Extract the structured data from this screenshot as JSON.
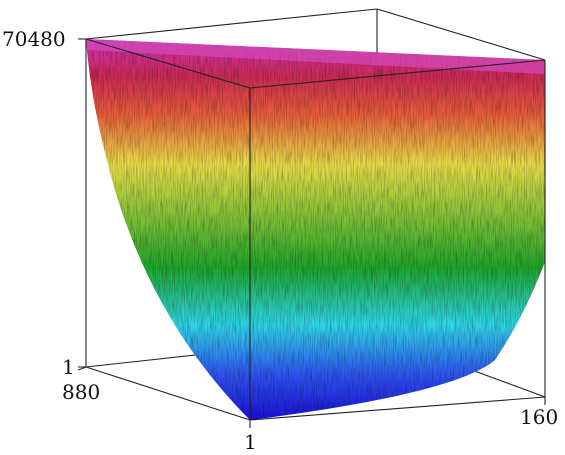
{
  "chart_data": {
    "type": "surface3d",
    "title": "",
    "xlabel": "",
    "ylabel": "",
    "zlabel": "",
    "colormap": "rainbow (blue at bottom, through cyan, green, yellow, red, to magenta at top)",
    "x_axis": {
      "ticks": [
        "1",
        "160"
      ],
      "range": [
        1,
        160
      ]
    },
    "y_axis": {
      "ticks": [
        "880",
        "1"
      ],
      "range": [
        1,
        880
      ]
    },
    "z_axis": {
      "ticks": [
        "1",
        "70480"
      ],
      "range": [
        1,
        70480
      ]
    },
    "grid": false,
    "legend": "none",
    "surface_note": "noisy surface rising from about 1 at (x=1,y=1) to about 70480 along the far back edge, with a steep valley near the front corner"
  }
}
